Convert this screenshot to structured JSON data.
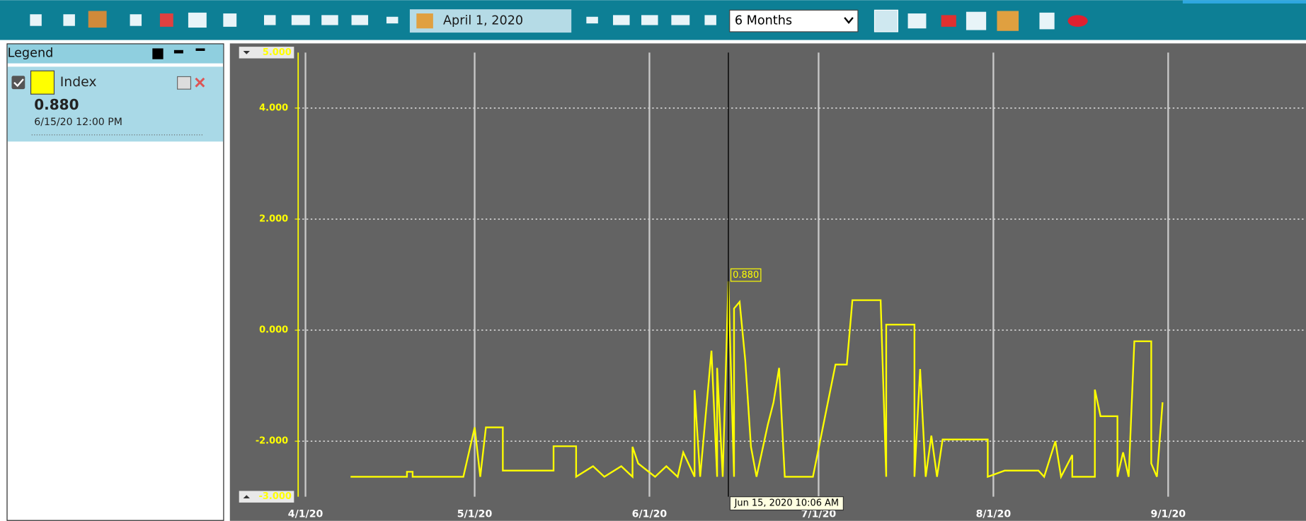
{
  "toolbar": {
    "date": "April 1, 2020",
    "range": "6 Months"
  },
  "legend": {
    "title": "Legend",
    "current_value": "0.880",
    "current_time": "6/15/20 12:00 PM"
  },
  "chart_data": {
    "type": "line",
    "x": [
      "2020-04-09",
      "2020-04-19",
      "2020-04-19",
      "2020-04-20",
      "2020-04-20",
      "2020-04-29",
      "2020-05-01",
      "2020-05-02",
      "2020-05-03",
      "2020-05-06",
      "2020-05-06",
      "2020-05-15",
      "2020-05-15",
      "2020-05-19",
      "2020-05-19",
      "2020-05-22",
      "2020-05-24",
      "2020-05-27",
      "2020-05-29",
      "2020-05-29",
      "2020-05-30",
      "2020-06-02",
      "2020-06-04",
      "2020-06-06",
      "2020-06-07",
      "2020-06-09",
      "2020-06-09",
      "2020-06-10",
      "2020-06-12",
      "2020-06-13",
      "2020-06-13",
      "2020-06-14",
      "2020-06-15",
      "2020-06-16",
      "2020-06-16",
      "2020-06-17",
      "2020-06-18",
      "2020-06-19",
      "2020-06-20",
      "2020-06-22",
      "2020-06-23",
      "2020-06-24",
      "2020-06-25",
      "2020-06-30",
      "2020-07-04",
      "2020-07-06",
      "2020-07-07",
      "2020-07-12",
      "2020-07-13",
      "2020-07-13",
      "2020-07-18",
      "2020-07-18",
      "2020-07-19",
      "2020-07-20",
      "2020-07-21",
      "2020-07-22",
      "2020-07-23",
      "2020-07-31",
      "2020-07-31",
      "2020-08-03",
      "2020-08-09",
      "2020-08-10",
      "2020-08-12",
      "2020-08-13",
      "2020-08-15",
      "2020-08-15",
      "2020-08-19",
      "2020-08-19",
      "2020-08-20",
      "2020-08-23",
      "2020-08-23",
      "2020-08-24",
      "2020-08-25",
      "2020-08-26",
      "2020-08-29",
      "2020-08-29",
      "2020-08-30",
      "2020-08-31"
    ],
    "series": [
      {
        "name": "Index",
        "color": "#ffff00",
        "values": [
          -2.64,
          -2.64,
          -2.55,
          -2.55,
          -2.64,
          -2.64,
          -1.75,
          -2.64,
          -1.75,
          -1.75,
          -2.53,
          -2.53,
          -2.09,
          -2.09,
          -2.64,
          -2.45,
          -2.64,
          -2.45,
          -2.64,
          -2.1,
          -2.4,
          -2.64,
          -2.45,
          -2.64,
          -2.2,
          -2.64,
          -1.08,
          -2.64,
          -0.37,
          -2.64,
          -0.68,
          -2.64,
          0.88,
          -2.64,
          0.39,
          0.51,
          -0.55,
          -2.1,
          -2.64,
          -1.7,
          -1.3,
          -0.68,
          -2.64,
          -2.64,
          -0.62,
          -0.62,
          0.54,
          0.54,
          -2.64,
          0.1,
          0.1,
          -2.64,
          -0.7,
          -2.64,
          -1.9,
          -2.64,
          -1.97,
          -1.97,
          -2.64,
          -2.53,
          -2.53,
          -2.64,
          -2.0,
          -2.64,
          -2.25,
          -2.64,
          -2.64,
          -1.07,
          -1.55,
          -1.55,
          -2.64,
          -2.2,
          -2.64,
          -0.2,
          -0.2,
          -2.4,
          -2.64,
          -1.3
        ]
      }
    ],
    "xlim": [
      "2020-03-31",
      "2020-09-25"
    ],
    "xticks": [
      {
        "value": "2020-04-01",
        "label": "4/1/20"
      },
      {
        "value": "2020-05-01",
        "label": "5/1/20"
      },
      {
        "value": "2020-06-01",
        "label": "6/1/20"
      },
      {
        "value": "2020-07-01",
        "label": "7/1/20"
      },
      {
        "value": "2020-08-01",
        "label": "8/1/20"
      },
      {
        "value": "2020-09-01",
        "label": "9/1/20"
      }
    ],
    "ylim": [
      -3,
      5
    ],
    "ylim_labels": [
      "-3.000",
      "5.000"
    ],
    "yticks": [
      {
        "value": 4,
        "label": "4.000"
      },
      {
        "value": 2,
        "label": "2.000"
      },
      {
        "value": 0,
        "label": "0.000"
      },
      {
        "value": -2,
        "label": "-2.000"
      }
    ],
    "grid": true,
    "cursor": {
      "x": "2020-06-15",
      "label": "Jun 15, 2020 10:06 AM",
      "value": 0.88,
      "value_label": "0.880"
    }
  }
}
